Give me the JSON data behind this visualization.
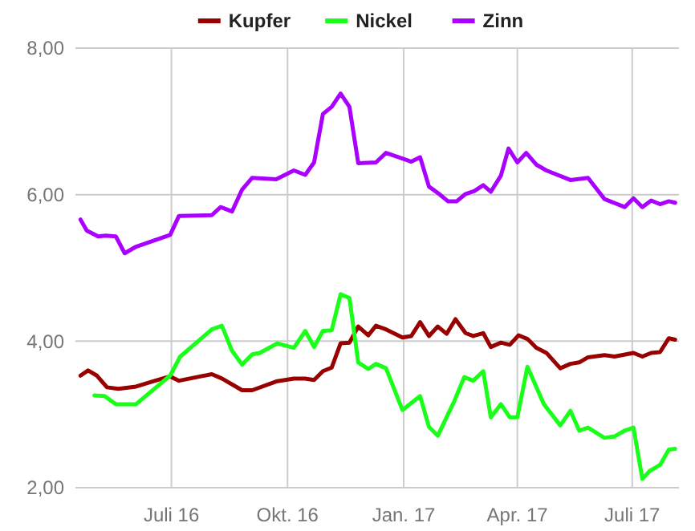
{
  "chart_data": {
    "type": "line",
    "legend": "top",
    "grid": true,
    "marker": "none",
    "line_style": "solid",
    "xlim": [
      "2016-04-16",
      "2017-08-07"
    ],
    "ylim": [
      2,
      8
    ],
    "xticks": [
      {
        "value": "2016-07-01",
        "label": "Juli 16"
      },
      {
        "value": "2016-10-01",
        "label": "Okt. 16"
      },
      {
        "value": "2017-01-01",
        "label": "Jan. 17"
      },
      {
        "value": "2017-04-01",
        "label": "Apr. 17"
      },
      {
        "value": "2017-07-01",
        "label": "Juli 17"
      }
    ],
    "yticks": [
      {
        "value": 2,
        "label": "2,00"
      },
      {
        "value": 4,
        "label": "4,00"
      },
      {
        "value": 6,
        "label": "6,00"
      },
      {
        "value": 8,
        "label": "8,00"
      }
    ],
    "series": [
      {
        "name": "Kupfer",
        "color": "#990000",
        "x": [
          "2016-04-20",
          "2016-04-26",
          "2016-05-03",
          "2016-05-11",
          "2016-05-20",
          "2016-06-03",
          "2016-06-16",
          "2016-06-30",
          "2016-07-07",
          "2016-08-02",
          "2016-08-10",
          "2016-08-26",
          "2016-09-03",
          "2016-09-22",
          "2016-10-06",
          "2016-10-15",
          "2016-10-22",
          "2016-10-29",
          "2016-11-05",
          "2016-11-12",
          "2016-11-19",
          "2016-11-26",
          "2016-12-04",
          "2016-12-10",
          "2016-12-18",
          "2016-12-31",
          "2017-01-07",
          "2017-01-14",
          "2017-01-21",
          "2017-01-28",
          "2017-02-04",
          "2017-02-11",
          "2017-02-19",
          "2017-02-25",
          "2017-03-05",
          "2017-03-11",
          "2017-03-19",
          "2017-03-26",
          "2017-04-02",
          "2017-04-09",
          "2017-04-16",
          "2017-04-24",
          "2017-05-05",
          "2017-05-13",
          "2017-05-20",
          "2017-05-27",
          "2017-06-09",
          "2017-06-17",
          "2017-07-02",
          "2017-07-09",
          "2017-07-16",
          "2017-07-23",
          "2017-07-30",
          "2017-08-04"
        ],
        "values": [
          3.53,
          3.6,
          3.53,
          3.37,
          3.35,
          3.38,
          3.45,
          3.52,
          3.46,
          3.55,
          3.49,
          3.33,
          3.33,
          3.45,
          3.49,
          3.49,
          3.47,
          3.59,
          3.64,
          3.97,
          3.98,
          4.2,
          4.08,
          4.21,
          4.16,
          4.05,
          4.07,
          4.26,
          4.07,
          4.2,
          4.1,
          4.3,
          4.11,
          4.07,
          4.11,
          3.92,
          3.98,
          3.95,
          4.08,
          4.03,
          3.91,
          3.84,
          3.63,
          3.69,
          3.71,
          3.78,
          3.81,
          3.79,
          3.84,
          3.79,
          3.84,
          3.85,
          4.04,
          4.02
        ]
      },
      {
        "name": "Nickel",
        "color": "#1aff1a",
        "x": [
          "2016-05-01",
          "2016-05-09",
          "2016-05-18",
          "2016-06-03",
          "2016-06-30",
          "2016-07-08",
          "2016-08-02",
          "2016-08-10",
          "2016-08-18",
          "2016-08-26",
          "2016-09-03",
          "2016-09-09",
          "2016-09-23",
          "2016-10-06",
          "2016-10-15",
          "2016-10-22",
          "2016-10-29",
          "2016-11-05",
          "2016-11-12",
          "2016-11-19",
          "2016-11-26",
          "2016-12-04",
          "2016-12-10",
          "2016-12-18",
          "2016-12-31",
          "2017-01-14",
          "2017-01-21",
          "2017-01-28",
          "2017-02-10",
          "2017-02-18",
          "2017-02-25",
          "2017-03-05",
          "2017-03-11",
          "2017-03-19",
          "2017-03-26",
          "2017-04-01",
          "2017-04-09",
          "2017-04-22",
          "2017-05-05",
          "2017-05-13",
          "2017-05-20",
          "2017-05-27",
          "2017-06-09",
          "2017-06-17",
          "2017-06-25",
          "2017-07-02",
          "2017-07-09",
          "2017-07-15",
          "2017-07-23",
          "2017-07-30",
          "2017-08-04"
        ],
        "values": [
          3.26,
          3.25,
          3.14,
          3.14,
          3.53,
          3.79,
          4.16,
          4.21,
          3.87,
          3.68,
          3.82,
          3.84,
          3.97,
          3.91,
          4.14,
          3.92,
          4.14,
          4.15,
          4.64,
          4.59,
          3.71,
          3.62,
          3.69,
          3.63,
          3.06,
          3.25,
          2.83,
          2.71,
          3.18,
          3.51,
          3.46,
          3.59,
          2.96,
          3.14,
          2.96,
          2.96,
          3.65,
          3.14,
          2.85,
          3.05,
          2.78,
          2.82,
          2.68,
          2.7,
          2.78,
          2.82,
          2.12,
          2.23,
          2.31,
          2.52,
          2.53
        ]
      },
      {
        "name": "Zinn",
        "color": "#aa00ff",
        "x": [
          "2016-04-20",
          "2016-04-25",
          "2016-05-04",
          "2016-05-10",
          "2016-05-18",
          "2016-05-25",
          "2016-06-03",
          "2016-06-30",
          "2016-07-07",
          "2016-08-02",
          "2016-08-09",
          "2016-08-18",
          "2016-08-26",
          "2016-09-03",
          "2016-09-22",
          "2016-10-06",
          "2016-10-15",
          "2016-10-22",
          "2016-10-29",
          "2016-11-05",
          "2016-11-12",
          "2016-11-19",
          "2016-11-26",
          "2016-12-10",
          "2016-12-18",
          "2017-01-07",
          "2017-01-14",
          "2017-01-21",
          "2017-01-29",
          "2017-02-05",
          "2017-02-12",
          "2017-02-19",
          "2017-02-26",
          "2017-03-05",
          "2017-03-11",
          "2017-03-19",
          "2017-03-25",
          "2017-04-01",
          "2017-04-08",
          "2017-04-16",
          "2017-04-24",
          "2017-05-13",
          "2017-05-27",
          "2017-06-09",
          "2017-06-25",
          "2017-07-02",
          "2017-07-09",
          "2017-07-16",
          "2017-07-23",
          "2017-07-30",
          "2017-08-04"
        ],
        "values": [
          5.66,
          5.51,
          5.43,
          5.44,
          5.43,
          5.2,
          5.29,
          5.45,
          5.71,
          5.72,
          5.83,
          5.77,
          6.07,
          6.23,
          6.21,
          6.33,
          6.27,
          6.44,
          7.1,
          7.2,
          7.38,
          7.2,
          6.43,
          6.44,
          6.57,
          6.45,
          6.51,
          6.11,
          6.01,
          5.91,
          5.91,
          6.01,
          6.05,
          6.13,
          6.04,
          6.26,
          6.63,
          6.44,
          6.57,
          6.41,
          6.33,
          6.2,
          6.23,
          5.94,
          5.83,
          5.95,
          5.83,
          5.92,
          5.87,
          5.91,
          5.89
        ]
      }
    ]
  }
}
